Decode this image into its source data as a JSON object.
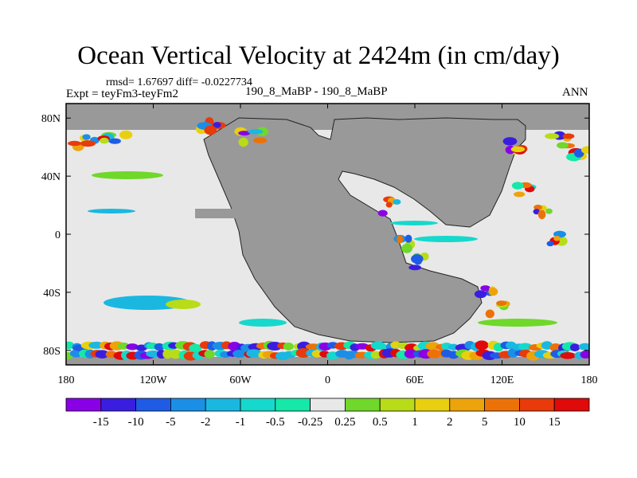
{
  "chart_data": {
    "type": "heatmap",
    "title": "Ocean Vertical Velocity at 2424m (in cm/day)",
    "stats_line": "rmsd= 1.67697 diff= -0.0227734",
    "experiment": "Expt = teyFm3-teyFm2",
    "cases": "190_8_MaBP - 190_8_MaBP",
    "season": "ANN",
    "x_ticks": [
      "180",
      "120W",
      "60W",
      "0",
      "60E",
      "120E",
      "180"
    ],
    "x_values": [
      -180,
      -120,
      -60,
      0,
      60,
      120,
      180
    ],
    "y_ticks": [
      "80N",
      "40N",
      "0",
      "40S",
      "80S"
    ],
    "y_values": [
      80,
      40,
      0,
      -40,
      -80
    ],
    "xlim": [
      -180,
      180
    ],
    "ylim": [
      -90,
      90
    ],
    "colorbar_labels": [
      "-15",
      "-10",
      "-5",
      "-2",
      "-1",
      "-0.5",
      "-0.25",
      "0.25",
      "0.5",
      "1",
      "2",
      "5",
      "10",
      "15"
    ],
    "colorbar_colors": [
      "#8a00e6",
      "#3a1ee0",
      "#1f5ce6",
      "#1b8fe6",
      "#1ab8e0",
      "#16d8cc",
      "#15e8a8",
      "#e8e8e8",
      "#6fd82a",
      "#b8dc18",
      "#e8d010",
      "#eda30c",
      "#ec7208",
      "#e83a0a",
      "#e00a0a"
    ],
    "land_color": "#999999",
    "ocean_neutral_color": "#e8e8e8"
  }
}
